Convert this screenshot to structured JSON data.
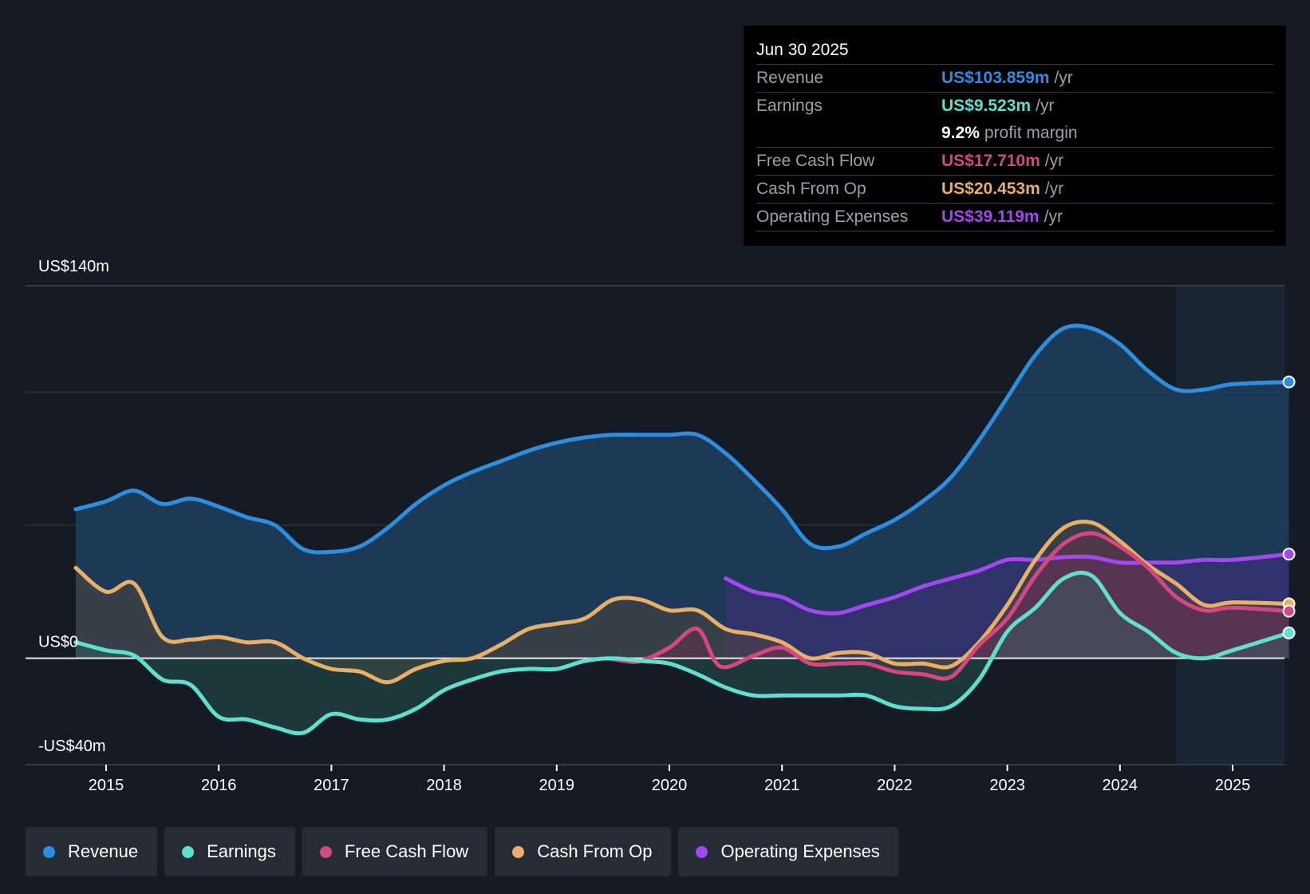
{
  "chart_data": {
    "type": "line",
    "title": "",
    "xlabel": "",
    "ylabel": "",
    "ylim": [
      -40,
      140
    ],
    "y_axis_labels": {
      "top": "US$140m",
      "zero": "US$0",
      "bottom": "-US$40m"
    },
    "x_ticks": [
      2015,
      2016,
      2017,
      2018,
      2019,
      2020,
      2021,
      2022,
      2023,
      2024,
      2025
    ],
    "series": [
      {
        "name": "Revenue",
        "color": "#2d8ee0",
        "fill": "#1c3b58",
        "points": [
          [
            2014.73,
            56
          ],
          [
            2015.0,
            59
          ],
          [
            2015.25,
            63
          ],
          [
            2015.5,
            58
          ],
          [
            2015.75,
            60
          ],
          [
            2016.0,
            57
          ],
          [
            2016.25,
            53
          ],
          [
            2016.5,
            50
          ],
          [
            2016.75,
            41
          ],
          [
            2017.0,
            40
          ],
          [
            2017.25,
            42
          ],
          [
            2017.5,
            49
          ],
          [
            2017.75,
            58
          ],
          [
            2018.0,
            65
          ],
          [
            2018.25,
            70
          ],
          [
            2018.5,
            74
          ],
          [
            2018.75,
            78
          ],
          [
            2019.0,
            81
          ],
          [
            2019.25,
            83
          ],
          [
            2019.5,
            84
          ],
          [
            2019.75,
            84
          ],
          [
            2020.0,
            84
          ],
          [
            2020.25,
            84
          ],
          [
            2020.5,
            77
          ],
          [
            2020.75,
            67
          ],
          [
            2021.0,
            56
          ],
          [
            2021.25,
            43
          ],
          [
            2021.5,
            42
          ],
          [
            2021.75,
            47
          ],
          [
            2022.0,
            52
          ],
          [
            2022.25,
            59
          ],
          [
            2022.5,
            68
          ],
          [
            2022.75,
            82
          ],
          [
            2023.0,
            98
          ],
          [
            2023.25,
            114
          ],
          [
            2023.5,
            124
          ],
          [
            2023.75,
            124
          ],
          [
            2024.0,
            118
          ],
          [
            2024.25,
            108
          ],
          [
            2024.5,
            101
          ],
          [
            2024.75,
            101
          ],
          [
            2025.0,
            103
          ],
          [
            2025.5,
            103.859
          ]
        ]
      },
      {
        "name": "Earnings",
        "color": "#5fe0cf",
        "points": [
          [
            2014.73,
            6
          ],
          [
            2015.0,
            3
          ],
          [
            2015.25,
            1
          ],
          [
            2015.5,
            -8
          ],
          [
            2015.75,
            -10
          ],
          [
            2016.0,
            -22
          ],
          [
            2016.25,
            -23
          ],
          [
            2016.5,
            -26
          ],
          [
            2016.75,
            -28
          ],
          [
            2017.0,
            -21
          ],
          [
            2017.25,
            -23
          ],
          [
            2017.5,
            -23
          ],
          [
            2017.75,
            -19
          ],
          [
            2018.0,
            -12
          ],
          [
            2018.25,
            -8
          ],
          [
            2018.5,
            -5
          ],
          [
            2018.75,
            -4
          ],
          [
            2019.0,
            -4
          ],
          [
            2019.25,
            -1
          ],
          [
            2019.5,
            0
          ],
          [
            2019.75,
            -1
          ],
          [
            2020.0,
            -2
          ],
          [
            2020.25,
            -6
          ],
          [
            2020.5,
            -11
          ],
          [
            2020.75,
            -14
          ],
          [
            2021.0,
            -14
          ],
          [
            2021.25,
            -14
          ],
          [
            2021.5,
            -14
          ],
          [
            2021.75,
            -14
          ],
          [
            2022.0,
            -18
          ],
          [
            2022.25,
            -19
          ],
          [
            2022.5,
            -18
          ],
          [
            2022.75,
            -8
          ],
          [
            2023.0,
            10
          ],
          [
            2023.25,
            19
          ],
          [
            2023.5,
            30
          ],
          [
            2023.75,
            31
          ],
          [
            2024.0,
            17
          ],
          [
            2024.25,
            10
          ],
          [
            2024.5,
            2
          ],
          [
            2024.75,
            0
          ],
          [
            2025.0,
            3
          ],
          [
            2025.5,
            9.523
          ]
        ]
      },
      {
        "name": "Free Cash Flow",
        "color": "#d4487f",
        "points": [
          [
            2019.45,
            0
          ],
          [
            2019.6,
            -1
          ],
          [
            2019.75,
            -1
          ],
          [
            2020.0,
            4
          ],
          [
            2020.25,
            11
          ],
          [
            2020.45,
            -3
          ],
          [
            2020.75,
            1
          ],
          [
            2021.0,
            4
          ],
          [
            2021.25,
            -2
          ],
          [
            2021.5,
            -2
          ],
          [
            2021.75,
            -2
          ],
          [
            2022.0,
            -5
          ],
          [
            2022.25,
            -6
          ],
          [
            2022.5,
            -7
          ],
          [
            2022.75,
            5
          ],
          [
            2023.0,
            15
          ],
          [
            2023.25,
            31
          ],
          [
            2023.5,
            43
          ],
          [
            2023.75,
            47
          ],
          [
            2024.0,
            42
          ],
          [
            2024.25,
            34
          ],
          [
            2024.5,
            23
          ],
          [
            2024.75,
            18
          ],
          [
            2025.0,
            19
          ],
          [
            2025.5,
            17.71
          ]
        ]
      },
      {
        "name": "Cash From Op",
        "color": "#e8b066",
        "points": [
          [
            2014.73,
            34
          ],
          [
            2015.0,
            25
          ],
          [
            2015.25,
            28
          ],
          [
            2015.5,
            8
          ],
          [
            2015.75,
            7
          ],
          [
            2016.0,
            8
          ],
          [
            2016.25,
            6
          ],
          [
            2016.5,
            6
          ],
          [
            2016.75,
            0
          ],
          [
            2017.0,
            -4
          ],
          [
            2017.25,
            -5
          ],
          [
            2017.5,
            -9
          ],
          [
            2017.75,
            -4
          ],
          [
            2018.0,
            -1
          ],
          [
            2018.25,
            0
          ],
          [
            2018.5,
            5
          ],
          [
            2018.75,
            11
          ],
          [
            2019.0,
            13
          ],
          [
            2019.25,
            15
          ],
          [
            2019.5,
            22
          ],
          [
            2019.75,
            22
          ],
          [
            2020.0,
            18
          ],
          [
            2020.25,
            18
          ],
          [
            2020.5,
            11
          ],
          [
            2020.75,
            9
          ],
          [
            2021.0,
            6
          ],
          [
            2021.25,
            0
          ],
          [
            2021.5,
            2
          ],
          [
            2021.75,
            2
          ],
          [
            2022.0,
            -2
          ],
          [
            2022.25,
            -2
          ],
          [
            2022.5,
            -3
          ],
          [
            2022.75,
            6
          ],
          [
            2023.0,
            20
          ],
          [
            2023.25,
            37
          ],
          [
            2023.5,
            49
          ],
          [
            2023.75,
            51
          ],
          [
            2024.0,
            44
          ],
          [
            2024.25,
            35
          ],
          [
            2024.5,
            28
          ],
          [
            2024.75,
            20
          ],
          [
            2025.0,
            21
          ],
          [
            2025.5,
            20.453
          ]
        ]
      },
      {
        "name": "Operating Expenses",
        "color": "#a347ee",
        "points": [
          [
            2020.5,
            30
          ],
          [
            2020.75,
            25
          ],
          [
            2021.0,
            23
          ],
          [
            2021.25,
            18
          ],
          [
            2021.5,
            17
          ],
          [
            2021.75,
            20
          ],
          [
            2022.0,
            23
          ],
          [
            2022.25,
            27
          ],
          [
            2022.5,
            30
          ],
          [
            2022.75,
            33
          ],
          [
            2023.0,
            37
          ],
          [
            2023.25,
            37
          ],
          [
            2023.5,
            38
          ],
          [
            2023.75,
            38
          ],
          [
            2024.0,
            36
          ],
          [
            2024.25,
            36
          ],
          [
            2024.5,
            36
          ],
          [
            2024.75,
            37
          ],
          [
            2025.0,
            37
          ],
          [
            2025.5,
            39.119
          ]
        ]
      }
    ],
    "forecast_shading_start": 2024.5
  },
  "tooltip": {
    "date": "Jun 30 2025",
    "rows": [
      {
        "label": "Revenue",
        "value": "US$103.859m",
        "unit": "/yr",
        "color": "#2d8ee0"
      },
      {
        "label": "Earnings",
        "value": "US$9.523m",
        "unit": "/yr",
        "color": "#5fe0cf"
      },
      {
        "label": "",
        "value": "9.2%",
        "unit": "profit margin",
        "color": "#ffffff"
      },
      {
        "label": "Free Cash Flow",
        "value": "US$17.710m",
        "unit": "/yr",
        "color": "#d4487f"
      },
      {
        "label": "Cash From Op",
        "value": "US$20.453m",
        "unit": "/yr",
        "color": "#e8b066"
      },
      {
        "label": "Operating Expenses",
        "value": "US$39.119m",
        "unit": "/yr",
        "color": "#a347ee"
      }
    ]
  },
  "legend": [
    {
      "label": "Revenue",
      "color": "#2d8ee0"
    },
    {
      "label": "Earnings",
      "color": "#5fe0cf"
    },
    {
      "label": "Free Cash Flow",
      "color": "#d4487f"
    },
    {
      "label": "Cash From Op",
      "color": "#e8b066"
    },
    {
      "label": "Operating Expenses",
      "color": "#a347ee"
    }
  ]
}
